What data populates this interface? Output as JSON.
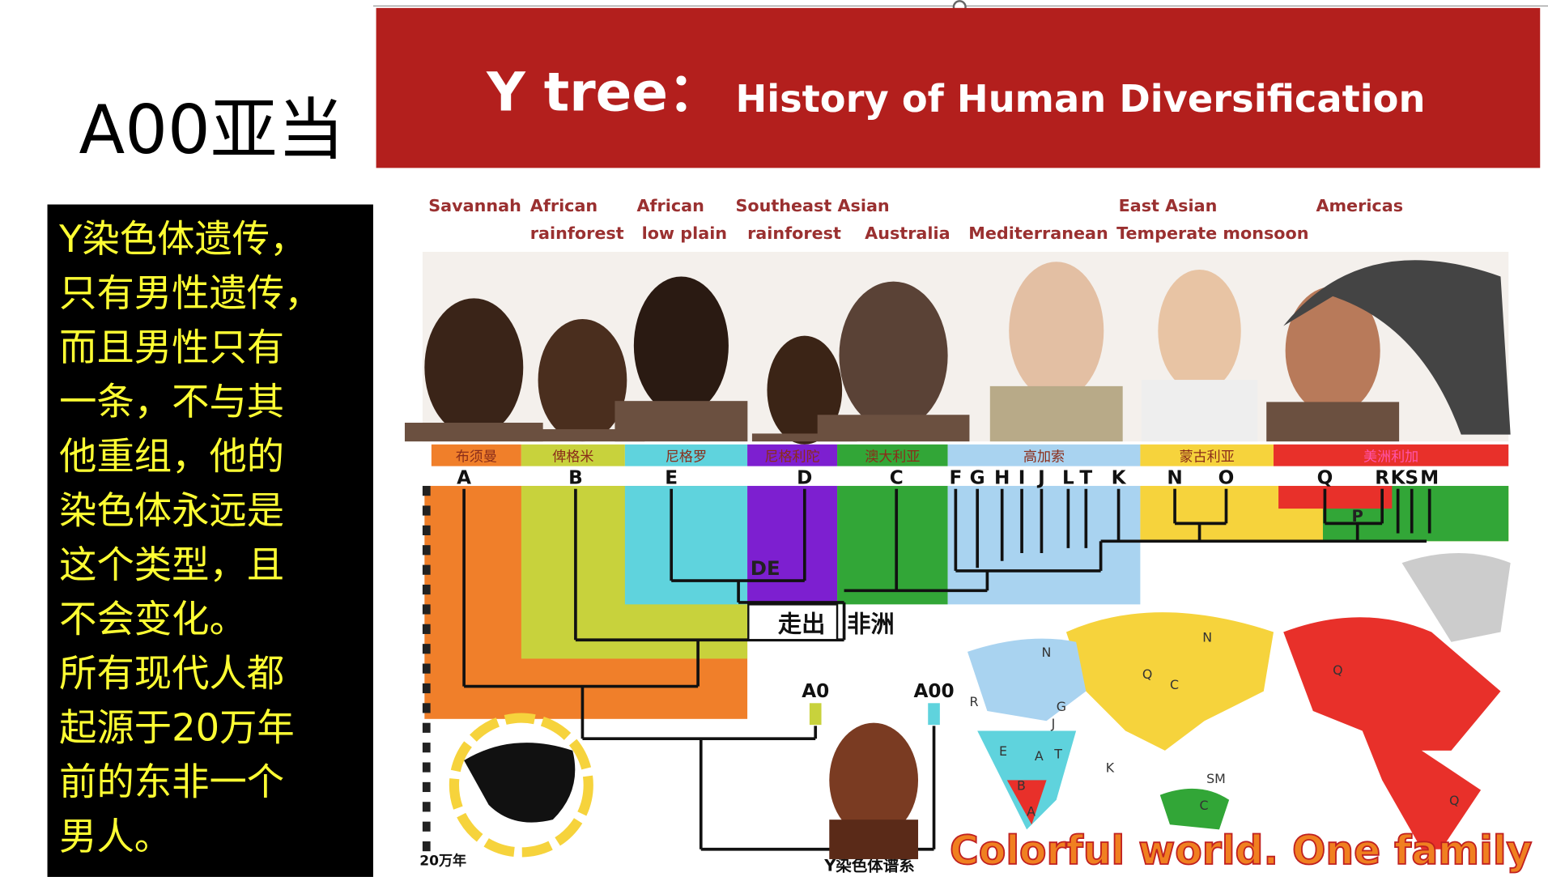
{
  "title": "A00亚当",
  "note": {
    "lines": [
      "Y染色体遗传，",
      "只有男性遗传，",
      "而且男性只有",
      "一条，不与其",
      "他重组，他的",
      "染色体永远是",
      "这个类型，且",
      "不会变化。",
      "所有现代人都",
      "起源于20万年",
      "前的东非一个",
      "男人。"
    ]
  },
  "banner": {
    "title": "Y tree：",
    "subtitle": "History of Human Diversification"
  },
  "regions": [
    [
      "Savannah"
    ],
    [
      "African",
      "rainforest"
    ],
    [
      "African",
      "low plain"
    ],
    [
      "Southeast Asian",
      "rainforest"
    ],
    [
      "Australia"
    ],
    [
      "Mediterranean"
    ],
    [
      "East Asian",
      "Temperate monsoon"
    ],
    [
      "Americas"
    ]
  ],
  "populations": [
    "布须曼",
    "俾格米",
    "尼格罗",
    "尼格利陀",
    "澳大利亚",
    "高加索",
    "蒙古利亚",
    "美洲利加"
  ],
  "haplogroups": [
    "A",
    "B",
    "E",
    "D",
    "C",
    "F",
    "G",
    "H",
    "I",
    "J",
    "L",
    "T",
    "K",
    "N",
    "O",
    "Q",
    "R",
    "K",
    "S",
    "M"
  ],
  "tree_labels": {
    "de": "DE",
    "p": "P",
    "out": "走出",
    "africa": "非洲",
    "a0": "A0",
    "a00": "A00",
    "time": "20万年",
    "caption": "Y染色体谱系"
  },
  "map_labels": [
    "N",
    "N",
    "Q",
    "C",
    "R",
    "G",
    "J",
    "E",
    "A",
    "T",
    "B",
    "A",
    "K",
    "C",
    "SM",
    "Q",
    "Q"
  ],
  "slogan": "Colorful world. One family"
}
